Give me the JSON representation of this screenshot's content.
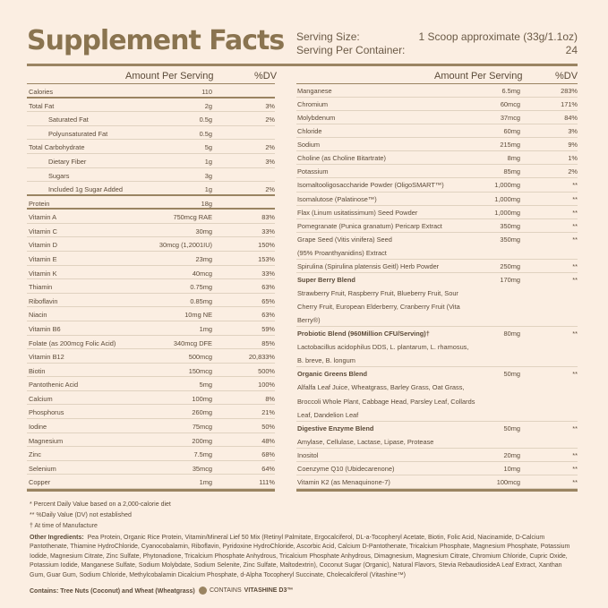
{
  "title": "Supplement Facts",
  "serving": {
    "size_label": "Serving Size:",
    "size_value": "1 Scoop approximate (33g/1.1oz)",
    "per_container_label": "Serving Per Container:",
    "per_container_value": "24"
  },
  "headers": {
    "amount": "Amount Per Serving",
    "dv": "%DV"
  },
  "left_rows": [
    {
      "name": "Calories",
      "amount": "110",
      "dv": ""
    },
    {
      "name": "Total Fat",
      "amount": "2g",
      "dv": "3%"
    },
    {
      "name": "Saturated Fat",
      "amount": "0.5g",
      "dv": "2%",
      "indent": true
    },
    {
      "name": "Polyunsaturated Fat",
      "amount": "0.5g",
      "dv": "",
      "indent": true
    },
    {
      "name": "Total Carbohydrate",
      "amount": "5g",
      "dv": "2%"
    },
    {
      "name": "Dietary Fiber",
      "amount": "1g",
      "dv": "3%",
      "indent": true
    },
    {
      "name": "Sugars",
      "amount": "3g",
      "dv": "",
      "indent": true
    },
    {
      "name": "Included 1g Sugar Added",
      "amount": "1g",
      "dv": "2%",
      "indent": true
    },
    {
      "name": "Protein",
      "amount": "18g",
      "dv": ""
    },
    {
      "name": "Vitamin A",
      "amount": "750mcg RAE",
      "dv": "83%"
    },
    {
      "name": "Vitamin C",
      "amount": "30mg",
      "dv": "33%"
    },
    {
      "name": "Vitamin D",
      "amount": "30mcg (1,2001IU)",
      "dv": "150%"
    },
    {
      "name": "Vitamin E",
      "amount": "23mg",
      "dv": "153%"
    },
    {
      "name": "Vitamin K",
      "amount": "40mcg",
      "dv": "33%"
    },
    {
      "name": "Thiamin",
      "amount": "0.75mg",
      "dv": "63%"
    },
    {
      "name": "Riboflavin",
      "amount": "0.85mg",
      "dv": "65%"
    },
    {
      "name": "Niacin",
      "amount": "10mg NE",
      "dv": "63%"
    },
    {
      "name": "Vitamin B6",
      "amount": "1mg",
      "dv": "59%"
    },
    {
      "name": "Folate (as 200mcg Folic Acid)",
      "amount": "340mcg DFE",
      "dv": "85%"
    },
    {
      "name": "Vitamin B12",
      "amount": "500mcg",
      "dv": "20,833%"
    },
    {
      "name": "Biotin",
      "amount": "150mcg",
      "dv": "500%"
    },
    {
      "name": "Pantothenic Acid",
      "amount": "5mg",
      "dv": "100%"
    },
    {
      "name": "Calcium",
      "amount": "100mg",
      "dv": "8%"
    },
    {
      "name": "Phosphorus",
      "amount": "260mg",
      "dv": "21%"
    },
    {
      "name": "Iodine",
      "amount": "75mcg",
      "dv": "50%"
    },
    {
      "name": "Magnesium",
      "amount": "200mg",
      "dv": "48%"
    },
    {
      "name": "Zinc",
      "amount": "7.5mg",
      "dv": "68%"
    },
    {
      "name": "Selenium",
      "amount": "35mcg",
      "dv": "64%"
    },
    {
      "name": "Copper",
      "amount": "1mg",
      "dv": "111%"
    }
  ],
  "right_rows": [
    {
      "name": "Manganese",
      "amount": "6.5mg",
      "dv": "283%"
    },
    {
      "name": "Chromium",
      "amount": "60mcg",
      "dv": "171%"
    },
    {
      "name": "Molybdenum",
      "amount": "37mcg",
      "dv": "84%"
    },
    {
      "name": "Chloride",
      "amount": "60mg",
      "dv": "3%"
    },
    {
      "name": "Sodium",
      "amount": "215mg",
      "dv": "9%"
    },
    {
      "name": "Choline (as Choline Bitartrate)",
      "amount": "8mg",
      "dv": "1%"
    },
    {
      "name": "Potassium",
      "amount": "85mg",
      "dv": "2%"
    },
    {
      "name": "Isomaltooligosaccharide Powder (OligoSMART™)",
      "amount": "1,000mg",
      "dv": "**"
    },
    {
      "name": "Isomalutose (Palatinose™)",
      "amount": "1,000mg",
      "dv": "**"
    },
    {
      "name": "Flax (Linum usitatissimum) Seed Powder",
      "amount": "1,000mg",
      "dv": "**"
    },
    {
      "name": "Pomegranate (Punica granatum) Pericarp Extract",
      "amount": "350mg",
      "dv": "**"
    },
    {
      "name": "Grape Seed (Vitis vinifera) Seed",
      "name2": "(95% Proanthyanidins) Extract",
      "amount": "350mg",
      "dv": "**"
    },
    {
      "name": "Spirulina (Spirulina platensis Geitl) Herb Powder",
      "amount": "250mg",
      "dv": "**"
    },
    {
      "name": "Super Berry Blend",
      "bold": true,
      "desc": "Strawberry Fruit, Raspberry Fruit, Blueberry Fruit, Sour Cherry Fruit, European Elderberry, Cranberry Fruit  (Vita Berry®)",
      "amount": "170mg",
      "dv": "**"
    },
    {
      "name": "Probiotic Blend (960Million CFU/Serving)†",
      "bold": true,
      "desc": "Lactobacillus acidophilus DDS, L. plantarum, L. rhamosus, B. breve, B. longum",
      "amount": "80mg",
      "dv": "**"
    },
    {
      "name": "Organic Greens Blend",
      "bold": true,
      "desc": "Alfalfa Leaf Juice, Wheatgrass, Barley Grass, Oat Grass, Broccoli Whole Plant, Cabbage Head, Parsley Leaf, Collards Leaf, Dandelion Leaf",
      "amount": "50mg",
      "dv": "**"
    },
    {
      "name": "Digestive Enzyme Blend",
      "bold": true,
      "desc": "Amylase, Cellulase, Lactase, Lipase, Protease",
      "amount": "50mg",
      "dv": "**"
    },
    {
      "name": "Inositol",
      "amount": "20mg",
      "dv": "**"
    },
    {
      "name": "Coenzyme Q10 (Ubidecarenone)",
      "amount": "10mg",
      "dv": "**"
    },
    {
      "name": "Vitamin K2 (as Menaquinone-7)",
      "amount": "100mcg",
      "dv": "**"
    }
  ],
  "footnotes": [
    "* Percent Daily Value based on a 2,000-calorie diet",
    "** %Daily Value (DV) not established",
    "† At time of Manufacture"
  ],
  "other_ingredients_label": "Other Ingredients:",
  "other_ingredients": "Pea Protein, Organic Rice Protein, Vitamin/Mineral Lief 50 Mix (Retinyl Palmitate, Ergocalciferol, DL-a-Tocopheryl Acetate, Biotin, Folic Acid, Niacinamide, D-Calcium Pantothenate, Thiamine HydroChloride, Cyanocobalamin, Riboflavin, Pyridoxine HydroChloride, Ascorbic Acid, Calcium D-Pantothenate, Tricalcium Phosphate, Magnesium Phosphate, Potassium Iodide, Magnesium Citrate, Zinc Sulfate, Phytonadione, Tricalcium Phosphate Anhydrous, Tricalcium Phosphate Anhydrous, Dimagnesium, Magnesium Citrate, Chromium Chloride, Cupric Oxide, Potassium Iodide, Manganese Sulfate, Sodium Molybdate, Sodium Selenite, Zinc Sulfate, Maltodextrin), Coconut Sugar (Organic), Natural Flavors, Stevia RebaudiosideA Leaf Extract, Xanthan Gum, Guar Gum, Sodium Chloride, Methylcobalamin Dicalcium Phosphate, d-Alpha Tocopheryl Succinate, Cholecalciferol (Vitashine™)",
  "contains": "Contains: Tree Nuts (Coconut) and Wheat (Wheatgrass)",
  "vitashine": {
    "prefix": "CONTAINS",
    "brand": "VITASHINE D3™"
  }
}
